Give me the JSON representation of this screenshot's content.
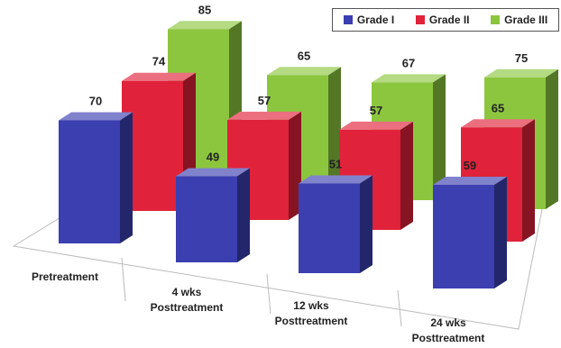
{
  "chart_data": {
    "type": "bar",
    "categories": [
      "Pretreatment",
      "4 wks Posttreatment",
      "12 wks Posttreatment",
      "24 wks Posttreatment"
    ],
    "category_lines": [
      [
        "Pretreatment"
      ],
      [
        "4 wks",
        "Posttreatment"
      ],
      [
        "12 wks",
        "Posttreatment"
      ],
      [
        "24 wks",
        "Posttreatment"
      ]
    ],
    "series": [
      {
        "name": "Grade I",
        "values": [
          70,
          49,
          51,
          59
        ],
        "color": "#3b3fb0"
      },
      {
        "name": "Grade II",
        "values": [
          74,
          57,
          57,
          65
        ],
        "color": "#e0223a"
      },
      {
        "name": "Grade III",
        "values": [
          85,
          65,
          67,
          75
        ],
        "color": "#8cc63f"
      }
    ],
    "title": "",
    "xlabel": "",
    "ylabel": "",
    "legend_position": "top-right",
    "grid": false,
    "style": "3d-column"
  }
}
